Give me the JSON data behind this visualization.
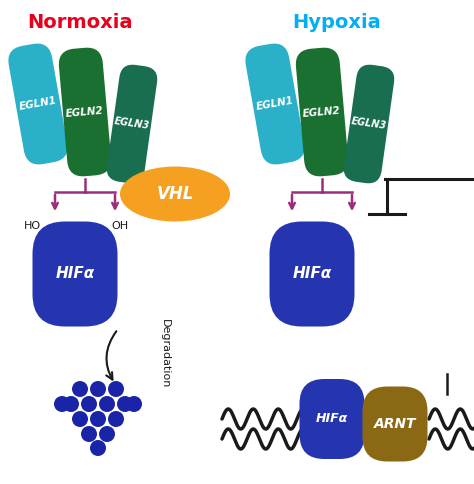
{
  "normoxia_title": "Normoxia",
  "hypoxia_title": "Hypoxia",
  "normoxia_title_color": "#e8001c",
  "hypoxia_title_color": "#00b0f0",
  "egln1_color": "#2ab0c8",
  "egln2_color": "#1a7030",
  "egln3_color": "#1a6e50",
  "hifa_color": "#2535af",
  "vhl_color": "#f5a020",
  "arnt_color": "#8b6914",
  "arrow_color": "#9b2e7a",
  "black": "#1a1a1a",
  "dots_color": "#1a24a8",
  "degradation_text": "Degradation",
  "ho_text": "HO",
  "oh_text": "OH",
  "hifa_text": "HIFα",
  "vhl_text": "VHL",
  "arnt_text": "ARNT",
  "egln1_text": "EGLN1",
  "egln2_text": "EGLN2",
  "egln3_text": "EGLN3"
}
